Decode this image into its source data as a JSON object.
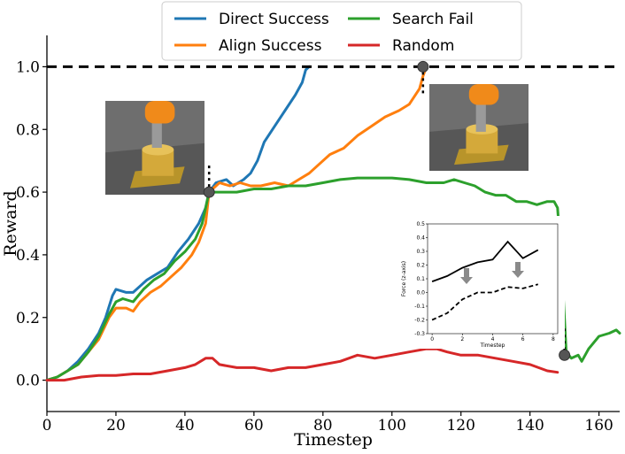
{
  "chart_data": {
    "type": "line",
    "xlabel": "Timestep",
    "ylabel": "Reward",
    "xlim": [
      0,
      166
    ],
    "ylim": [
      -0.1,
      1.1
    ],
    "x_ticks": [
      "0",
      "20",
      "40",
      "60",
      "80",
      "100",
      "120",
      "140",
      "160"
    ],
    "y_ticks": [
      "0.0",
      "0.2",
      "0.4",
      "0.6",
      "0.8",
      "1.0"
    ],
    "grid": false,
    "legend_position": "top-center",
    "reference_line": {
      "y": 1.0,
      "style": "dashed",
      "color": "#000000"
    },
    "series": [
      {
        "name": "Direct Success",
        "color": "#1f77b4",
        "points": [
          [
            0,
            0
          ],
          [
            3,
            0.01
          ],
          [
            6,
            0.03
          ],
          [
            9,
            0.06
          ],
          [
            12,
            0.1
          ],
          [
            15,
            0.15
          ],
          [
            17,
            0.2
          ],
          [
            19,
            0.27
          ],
          [
            20,
            0.29
          ],
          [
            23,
            0.28
          ],
          [
            25,
            0.28
          ],
          [
            27,
            0.3
          ],
          [
            29,
            0.32
          ],
          [
            32,
            0.34
          ],
          [
            35,
            0.36
          ],
          [
            38,
            0.41
          ],
          [
            41,
            0.45
          ],
          [
            44,
            0.5
          ],
          [
            46,
            0.55
          ],
          [
            47,
            0.6
          ],
          [
            49,
            0.63
          ],
          [
            52,
            0.64
          ],
          [
            54,
            0.62
          ],
          [
            57,
            0.64
          ],
          [
            59,
            0.66
          ],
          [
            61,
            0.7
          ],
          [
            63,
            0.76
          ],
          [
            66,
            0.81
          ],
          [
            69,
            0.86
          ],
          [
            72,
            0.91
          ],
          [
            74,
            0.95
          ],
          [
            75,
            0.99
          ],
          [
            76,
            1.0
          ]
        ]
      },
      {
        "name": "Align Success",
        "color": "#ff7f0e",
        "points": [
          [
            0,
            0
          ],
          [
            3,
            0.01
          ],
          [
            6,
            0.03
          ],
          [
            9,
            0.05
          ],
          [
            12,
            0.09
          ],
          [
            15,
            0.13
          ],
          [
            18,
            0.2
          ],
          [
            20,
            0.23
          ],
          [
            23,
            0.23
          ],
          [
            25,
            0.22
          ],
          [
            27,
            0.25
          ],
          [
            30,
            0.28
          ],
          [
            33,
            0.3
          ],
          [
            36,
            0.33
          ],
          [
            39,
            0.36
          ],
          [
            42,
            0.4
          ],
          [
            44,
            0.44
          ],
          [
            46,
            0.5
          ],
          [
            47,
            0.6
          ],
          [
            50,
            0.63
          ],
          [
            53,
            0.62
          ],
          [
            56,
            0.63
          ],
          [
            59,
            0.62
          ],
          [
            62,
            0.62
          ],
          [
            66,
            0.63
          ],
          [
            70,
            0.62
          ],
          [
            73,
            0.64
          ],
          [
            76,
            0.66
          ],
          [
            79,
            0.69
          ],
          [
            82,
            0.72
          ],
          [
            86,
            0.74
          ],
          [
            90,
            0.78
          ],
          [
            94,
            0.81
          ],
          [
            98,
            0.84
          ],
          [
            102,
            0.86
          ],
          [
            105,
            0.88
          ],
          [
            108,
            0.93
          ],
          [
            109,
            0.97
          ],
          [
            110,
            1.0
          ]
        ]
      },
      {
        "name": "Search Fail",
        "color": "#2ca02c",
        "points": [
          [
            0,
            0
          ],
          [
            3,
            0.01
          ],
          [
            6,
            0.03
          ],
          [
            9,
            0.05
          ],
          [
            12,
            0.09
          ],
          [
            15,
            0.14
          ],
          [
            18,
            0.21
          ],
          [
            20,
            0.25
          ],
          [
            22,
            0.26
          ],
          [
            25,
            0.25
          ],
          [
            28,
            0.29
          ],
          [
            31,
            0.32
          ],
          [
            34,
            0.34
          ],
          [
            37,
            0.38
          ],
          [
            40,
            0.41
          ],
          [
            43,
            0.45
          ],
          [
            45,
            0.5
          ],
          [
            47,
            0.6
          ],
          [
            50,
            0.6
          ],
          [
            55,
            0.6
          ],
          [
            60,
            0.61
          ],
          [
            65,
            0.61
          ],
          [
            70,
            0.62
          ],
          [
            75,
            0.62
          ],
          [
            80,
            0.63
          ],
          [
            85,
            0.64
          ],
          [
            90,
            0.645
          ],
          [
            95,
            0.645
          ],
          [
            100,
            0.645
          ],
          [
            105,
            0.64
          ],
          [
            110,
            0.63
          ],
          [
            115,
            0.63
          ],
          [
            118,
            0.64
          ],
          [
            121,
            0.63
          ],
          [
            124,
            0.62
          ],
          [
            127,
            0.6
          ],
          [
            130,
            0.59
          ],
          [
            133,
            0.59
          ],
          [
            136,
            0.57
          ],
          [
            139,
            0.57
          ],
          [
            142,
            0.56
          ],
          [
            145,
            0.57
          ],
          [
            147,
            0.57
          ],
          [
            148,
            0.55
          ],
          [
            149,
            0.4
          ],
          [
            150,
            0.2
          ],
          [
            150.5,
            0.09
          ],
          [
            152,
            0.07
          ],
          [
            154,
            0.08
          ],
          [
            155,
            0.06
          ],
          [
            157,
            0.1
          ],
          [
            160,
            0.14
          ],
          [
            163,
            0.15
          ],
          [
            165,
            0.16
          ],
          [
            166,
            0.15
          ]
        ]
      },
      {
        "name": "Random",
        "color": "#d62728",
        "points": [
          [
            0,
            0
          ],
          [
            5,
            0
          ],
          [
            10,
            0.01
          ],
          [
            15,
            0.015
          ],
          [
            20,
            0.015
          ],
          [
            25,
            0.02
          ],
          [
            30,
            0.02
          ],
          [
            35,
            0.03
          ],
          [
            40,
            0.04
          ],
          [
            43,
            0.05
          ],
          [
            46,
            0.07
          ],
          [
            48,
            0.07
          ],
          [
            50,
            0.05
          ],
          [
            55,
            0.04
          ],
          [
            60,
            0.04
          ],
          [
            65,
            0.03
          ],
          [
            70,
            0.04
          ],
          [
            75,
            0.04
          ],
          [
            80,
            0.05
          ],
          [
            85,
            0.06
          ],
          [
            90,
            0.08
          ],
          [
            95,
            0.07
          ],
          [
            100,
            0.08
          ],
          [
            105,
            0.09
          ],
          [
            110,
            0.1
          ],
          [
            113,
            0.1
          ],
          [
            116,
            0.09
          ],
          [
            120,
            0.08
          ],
          [
            125,
            0.08
          ],
          [
            130,
            0.07
          ],
          [
            135,
            0.06
          ],
          [
            140,
            0.05
          ],
          [
            145,
            0.03
          ],
          [
            148,
            0.025
          ]
        ]
      }
    ],
    "markers": [
      [
        47,
        0.6
      ],
      [
        109,
        1.0
      ],
      [
        150,
        0.08
      ]
    ],
    "inset": {
      "xlabel": "Timestep",
      "ylabel": "Force (z-axis)",
      "xlim": [
        -0.3,
        8.3
      ],
      "ylim": [
        -0.3,
        0.5
      ],
      "x_ticks": [
        "0",
        "2",
        "4",
        "6",
        "8"
      ],
      "y_ticks": [
        "-0.3",
        "-0.2",
        "-0.1",
        "0.0",
        "0.1",
        "0.2",
        "0.3",
        "0.4",
        "0.5"
      ],
      "series": [
        {
          "style": "solid",
          "x": [
            0,
            1,
            2,
            3,
            4,
            5,
            6,
            7
          ],
          "values": [
            0.08,
            0.12,
            0.18,
            0.22,
            0.24,
            0.37,
            0.25,
            0.31
          ]
        },
        {
          "style": "dashed",
          "x": [
            0,
            1,
            2,
            3,
            4,
            5,
            6,
            7
          ],
          "values": [
            -0.2,
            -0.15,
            -0.05,
            0.0,
            0.0,
            0.04,
            0.03,
            0.06
          ]
        }
      ]
    }
  }
}
